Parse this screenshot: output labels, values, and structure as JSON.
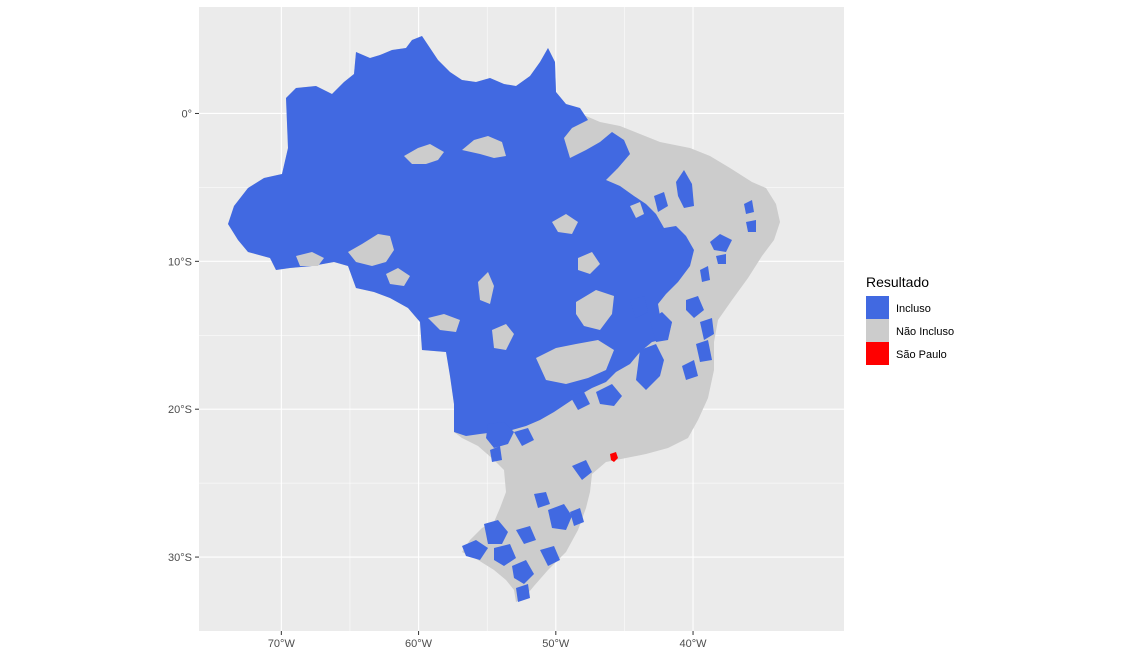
{
  "map": {
    "panel_background": "#ebebeb",
    "grid_color": "#ffffff",
    "lon_ticks": [
      {
        "value": -70,
        "label": "70°W"
      },
      {
        "value": -60,
        "label": "60°W"
      },
      {
        "value": -50,
        "label": "50°W"
      },
      {
        "value": -40,
        "label": "40°W"
      }
    ],
    "lat_ticks": [
      {
        "value": 0,
        "label": "0°"
      },
      {
        "value": -10,
        "label": "10°S"
      },
      {
        "value": -20,
        "label": "20°S"
      },
      {
        "value": -30,
        "label": "30°S"
      }
    ],
    "lon_range": [
      -76,
      -29
    ],
    "lat_range": [
      -35,
      7.2
    ]
  },
  "legend": {
    "title": "Resultado",
    "items": [
      {
        "label": "Incluso",
        "color": "#4169e1"
      },
      {
        "label": "Não Incluso",
        "color": "#cccccc"
      },
      {
        "label": "São Paulo",
        "color": "#ff0000"
      }
    ]
  }
}
